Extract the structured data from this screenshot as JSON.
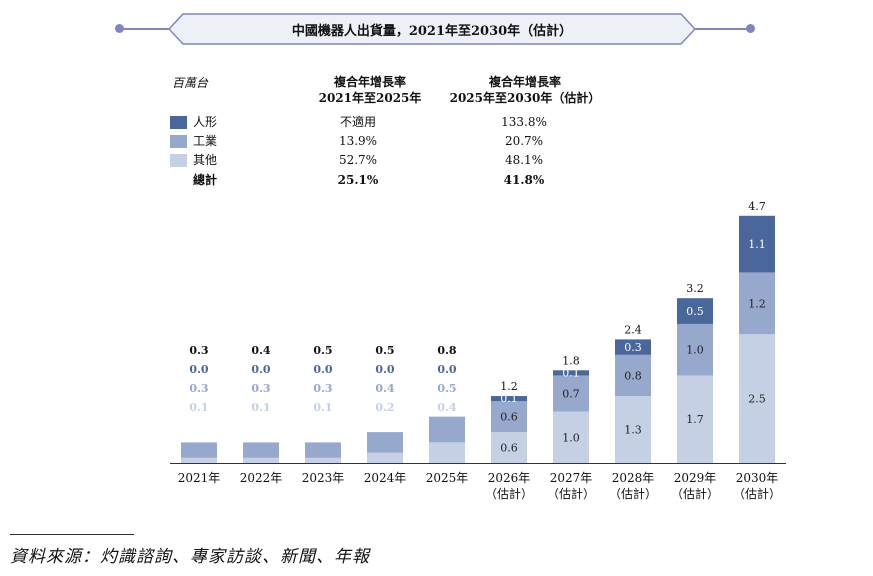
{
  "title": "中國機器人出貨量，2021年至2030年（估計）",
  "table": {
    "unit_label": "百萬台",
    "col1_header_line1": "複合年增長率",
    "col1_header_line2": "2021年至2025年",
    "col2_header_line1": "複合年增長率",
    "col2_header_line2": "2025年至2030年（估計）",
    "rows": [
      {
        "label": "人形",
        "color": "#4a679b",
        "cagr1": "不適用",
        "cagr2": "133.8%"
      },
      {
        "label": "工業",
        "color": "#96a8cc",
        "cagr1": "13.9%",
        "cagr2": "20.7%"
      },
      {
        "label": "其他",
        "color": "#c5d0e5",
        "cagr1": "52.7%",
        "cagr2": "48.1%"
      },
      {
        "label": "總計",
        "color": "",
        "cagr1": "25.1%",
        "cagr2": "41.8%"
      }
    ]
  },
  "chart_data": {
    "type": "bar",
    "stacked": true,
    "categories": [
      "2021年",
      "2022年",
      "2023年",
      "2024年",
      "2025年",
      "2026年\n（估計）",
      "2027年\n（估計）",
      "2028年\n（估計）",
      "2029年\n（估計）",
      "2030年\n（估計）"
    ],
    "series": [
      {
        "name": "其他",
        "color": "#c5d0e5",
        "values": [
          0.1,
          0.1,
          0.1,
          0.2,
          0.4,
          0.6,
          1.0,
          1.3,
          1.7,
          2.5
        ],
        "labels": [
          "0.1",
          "0.1",
          "0.1",
          "0.2",
          "0.4",
          "0.6",
          "1.0",
          "1.3",
          "1.7",
          "2.5"
        ]
      },
      {
        "name": "工業",
        "color": "#96a8cc",
        "values": [
          0.3,
          0.3,
          0.3,
          0.4,
          0.5,
          0.6,
          0.7,
          0.8,
          1.0,
          1.2
        ],
        "labels": [
          "0.3",
          "0.3",
          "0.3",
          "0.4",
          "0.5",
          "0.6",
          "0.7",
          "0.8",
          "1.0",
          "1.2"
        ]
      },
      {
        "name": "人形",
        "color": "#4a679b",
        "values": [
          0.0,
          0.0,
          0.0,
          0.0,
          0.0,
          0.1,
          0.1,
          0.3,
          0.5,
          1.1
        ],
        "labels": [
          "0.0",
          "0.0",
          "0.0",
          "0.0",
          "0.0",
          "0.1",
          "0.1",
          "0.3",
          "0.5",
          "1.1"
        ]
      }
    ],
    "totals": [
      "0.3",
      "0.4",
      "0.5",
      "0.5",
      "0.8",
      "1.2",
      "1.8",
      "2.4",
      "3.2",
      "4.7"
    ],
    "total_values": [
      0.3,
      0.4,
      0.5,
      0.5,
      0.8,
      1.2,
      1.8,
      2.4,
      3.2,
      4.7
    ],
    "labels_above_count": 5,
    "ylim": [
      0,
      4.7
    ]
  },
  "source": "資料來源：灼識諮詢、專家訪談、新聞、年報"
}
